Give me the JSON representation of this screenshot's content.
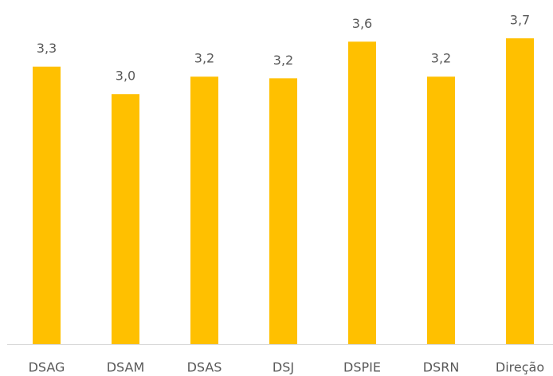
{
  "chart_data": {
    "type": "bar",
    "categories": [
      "DSAG",
      "DSAM",
      "DSAS",
      "DSJ",
      "DSPIE",
      "DSRN",
      "Direção"
    ],
    "values": [
      3.33,
      3.0,
      3.21,
      3.19,
      3.63,
      3.21,
      3.67
    ],
    "value_labels": [
      "3,3",
      "3,0",
      "3,2",
      "3,2",
      "3,6",
      "3,2",
      "3,7"
    ],
    "color": "#ffc000",
    "ylim": [
      0,
      4.13
    ]
  }
}
